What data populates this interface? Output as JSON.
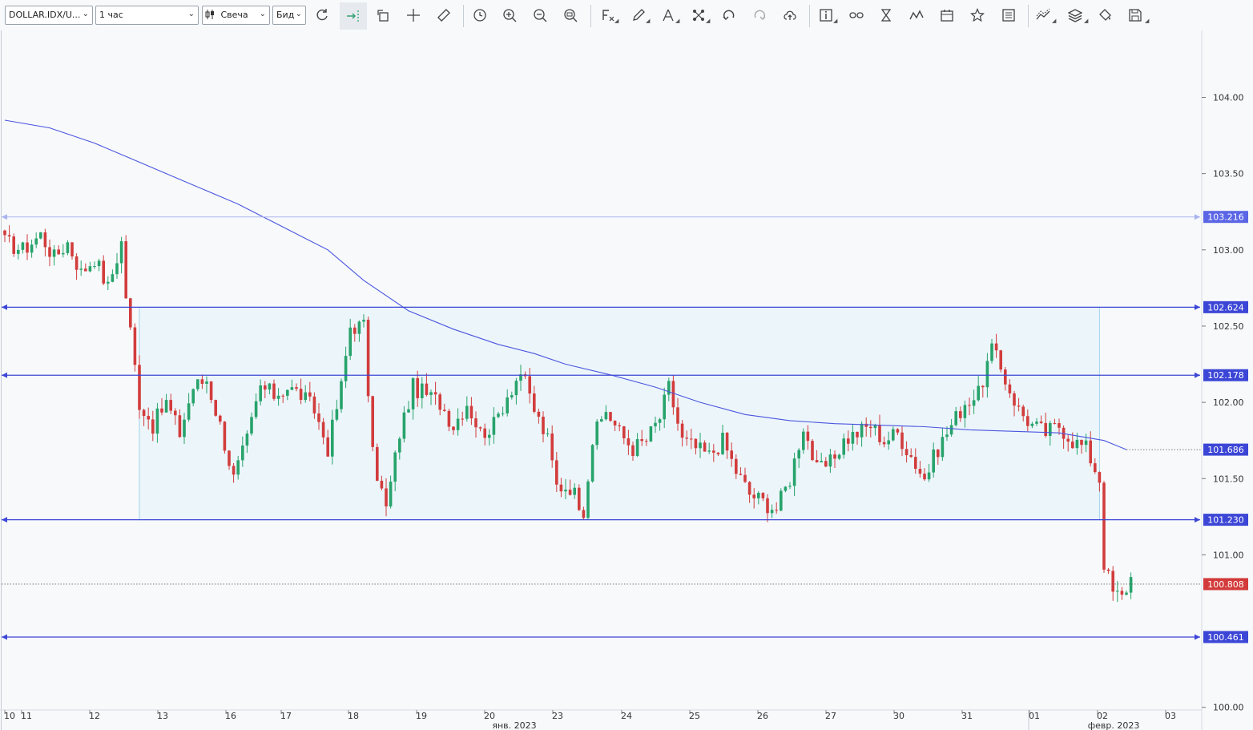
{
  "toolbar": {
    "symbol": "DOLLAR.IDX/U...",
    "timeframe": "1 час",
    "chart_type": "Свеча",
    "price_type": "Бид"
  },
  "colors": {
    "up": "#27a36b",
    "down": "#d23c3c",
    "ma": "#4a55e0",
    "hline": "#3c46d6",
    "zone_fill": "#e3f2fa",
    "zone_border": "#9fd4ee",
    "last_price_bg": "#d33a3a",
    "level_tag_bg": "#3c46d6"
  },
  "axis": {
    "y_ticks": [
      "104.00",
      "103.50",
      "103.00",
      "102.50",
      "102.00",
      "101.50",
      "101.00",
      "100.00"
    ],
    "x_ticks": [
      "10",
      "11",
      "12",
      "13",
      "16",
      "17",
      "18",
      "19",
      "20",
      "23",
      "24",
      "25",
      "26",
      "27",
      "30",
      "31",
      "01",
      "02",
      "03"
    ],
    "month_labels": [
      "янв. 2023",
      "февр. 2023"
    ]
  },
  "levels": [
    {
      "value": 103.216,
      "label": "103.216",
      "style": "light"
    },
    {
      "value": 102.624,
      "label": "102.624",
      "style": "solid"
    },
    {
      "value": 102.178,
      "label": "102.178",
      "style": "solid"
    },
    {
      "value": 101.23,
      "label": "101.230",
      "style": "solid"
    },
    {
      "value": 100.461,
      "label": "100.461",
      "style": "solid"
    }
  ],
  "ma_label": "101.686",
  "last_price": {
    "value": 100.808,
    "label": "100.808"
  },
  "chart_data": {
    "type": "candlestick",
    "symbol": "DOLLAR.IDX/USD",
    "timeframe": "1 час",
    "ylim": [
      100.0,
      104.4
    ],
    "x_dates": [
      "10",
      "11",
      "12",
      "13",
      "16",
      "17",
      "18",
      "19",
      "20",
      "23",
      "24",
      "25",
      "26",
      "27",
      "30",
      "31",
      "01",
      "02",
      "03"
    ],
    "price_path": [
      [
        0,
        103.05
      ],
      [
        4,
        103.0
      ],
      [
        8,
        103.1
      ],
      [
        11,
        102.95
      ],
      [
        14,
        103.05
      ],
      [
        17,
        102.85
      ],
      [
        20,
        102.95
      ],
      [
        23,
        102.75
      ],
      [
        26,
        103.05
      ],
      [
        27,
        102.7
      ],
      [
        30,
        102.0
      ],
      [
        33,
        101.85
      ],
      [
        36,
        102.0
      ],
      [
        39,
        101.8
      ],
      [
        42,
        102.1
      ],
      [
        45,
        102.15
      ],
      [
        48,
        101.85
      ],
      [
        51,
        101.5
      ],
      [
        54,
        101.75
      ],
      [
        57,
        102.1
      ],
      [
        60,
        102.05
      ],
      [
        63,
        102.1
      ],
      [
        66,
        102.05
      ],
      [
        69,
        101.95
      ],
      [
        72,
        101.7
      ],
      [
        75,
        102.1
      ],
      [
        77,
        102.5
      ],
      [
        80,
        102.5
      ],
      [
        82,
        101.65
      ],
      [
        85,
        101.3
      ],
      [
        88,
        101.8
      ],
      [
        91,
        102.1
      ],
      [
        94,
        102.05
      ],
      [
        97,
        102.0
      ],
      [
        100,
        101.85
      ],
      [
        103,
        102.0
      ],
      [
        106,
        101.8
      ],
      [
        109,
        101.85
      ],
      [
        112,
        102.05
      ],
      [
        115,
        102.2
      ],
      [
        118,
        101.95
      ],
      [
        121,
        101.75
      ],
      [
        123,
        101.45
      ],
      [
        126,
        101.45
      ],
      [
        129,
        101.3
      ],
      [
        131,
        101.75
      ],
      [
        134,
        101.95
      ],
      [
        137,
        101.8
      ],
      [
        140,
        101.7
      ],
      [
        143,
        101.75
      ],
      [
        146,
        101.9
      ],
      [
        148,
        102.1
      ],
      [
        151,
        101.75
      ],
      [
        154,
        101.7
      ],
      [
        157,
        101.65
      ],
      [
        160,
        101.75
      ],
      [
        163,
        101.55
      ],
      [
        166,
        101.4
      ],
      [
        169,
        101.35
      ],
      [
        172,
        101.3
      ],
      [
        175,
        101.5
      ],
      [
        178,
        101.85
      ],
      [
        181,
        101.55
      ],
      [
        184,
        101.6
      ],
      [
        187,
        101.75
      ],
      [
        190,
        101.8
      ],
      [
        193,
        101.85
      ],
      [
        196,
        101.75
      ],
      [
        199,
        101.8
      ],
      [
        202,
        101.65
      ],
      [
        205,
        101.5
      ],
      [
        208,
        101.7
      ],
      [
        211,
        101.85
      ],
      [
        214,
        102.0
      ],
      [
        217,
        102.05
      ],
      [
        220,
        102.35
      ],
      [
        223,
        102.15
      ],
      [
        226,
        101.95
      ],
      [
        229,
        101.85
      ],
      [
        232,
        101.8
      ],
      [
        235,
        101.85
      ],
      [
        238,
        101.75
      ],
      [
        241,
        101.7
      ],
      [
        244,
        101.5
      ],
      [
        245,
        100.95
      ],
      [
        247,
        100.75
      ],
      [
        249,
        100.72
      ],
      [
        251,
        100.85
      ]
    ],
    "moving_average": [
      [
        0,
        103.85
      ],
      [
        10,
        103.8
      ],
      [
        20,
        103.7
      ],
      [
        28,
        103.6
      ],
      [
        40,
        103.45
      ],
      [
        52,
        103.3
      ],
      [
        62,
        103.15
      ],
      [
        72,
        103.0
      ],
      [
        80,
        102.8
      ],
      [
        90,
        102.6
      ],
      [
        100,
        102.48
      ],
      [
        110,
        102.38
      ],
      [
        118,
        102.32
      ],
      [
        125,
        102.25
      ],
      [
        135,
        102.18
      ],
      [
        145,
        102.1
      ],
      [
        155,
        102.0
      ],
      [
        165,
        101.92
      ],
      [
        175,
        101.88
      ],
      [
        185,
        101.86
      ],
      [
        195,
        101.85
      ],
      [
        205,
        101.84
      ],
      [
        215,
        101.82
      ],
      [
        225,
        101.81
      ],
      [
        235,
        101.8
      ],
      [
        245,
        101.75
      ],
      [
        250,
        101.69
      ]
    ],
    "zone": {
      "x_start": 30,
      "x_end": 244,
      "y_low": 101.23,
      "y_high": 102.624
    }
  }
}
